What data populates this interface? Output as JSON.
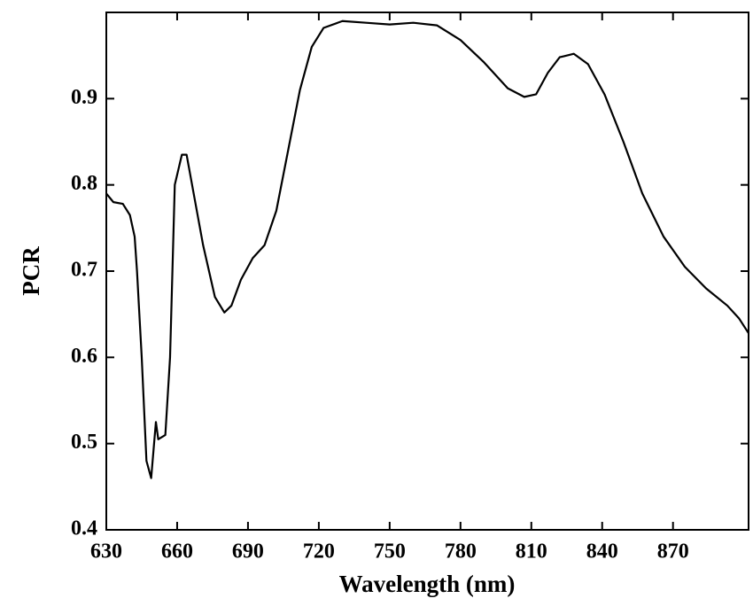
{
  "chart_data": {
    "type": "line",
    "x_label": "Wavelength (nm)",
    "y_label": "PCR",
    "xlim": [
      630,
      902
    ],
    "ylim": [
      0.4,
      1.0
    ],
    "xticks": [
      630,
      660,
      690,
      720,
      750,
      780,
      810,
      840,
      870
    ],
    "yticks": [
      0.4,
      0.5,
      0.6,
      0.7,
      0.8,
      0.9
    ],
    "grid": false,
    "series": [
      {
        "name": "PCR",
        "color": "#000000",
        "x": [
          630,
          633,
          637,
          640,
          642,
          643,
          645,
          647,
          649,
          651,
          652,
          655,
          657,
          659,
          662,
          664,
          667,
          671,
          676,
          680,
          683,
          687,
          692,
          697,
          702,
          707,
          712,
          717,
          722,
          730,
          740,
          750,
          760,
          770,
          780,
          790,
          800,
          807,
          812,
          817,
          822,
          828,
          834,
          841,
          849,
          857,
          866,
          875,
          884,
          893,
          898,
          902
        ],
        "values": [
          0.79,
          0.78,
          0.778,
          0.765,
          0.74,
          0.7,
          0.6,
          0.48,
          0.46,
          0.525,
          0.505,
          0.51,
          0.6,
          0.8,
          0.835,
          0.835,
          0.79,
          0.73,
          0.67,
          0.652,
          0.66,
          0.69,
          0.715,
          0.73,
          0.77,
          0.84,
          0.91,
          0.96,
          0.982,
          0.99,
          0.988,
          0.986,
          0.988,
          0.985,
          0.968,
          0.942,
          0.912,
          0.902,
          0.905,
          0.93,
          0.948,
          0.952,
          0.94,
          0.905,
          0.85,
          0.79,
          0.74,
          0.705,
          0.68,
          0.66,
          0.645,
          0.628
        ]
      }
    ]
  }
}
